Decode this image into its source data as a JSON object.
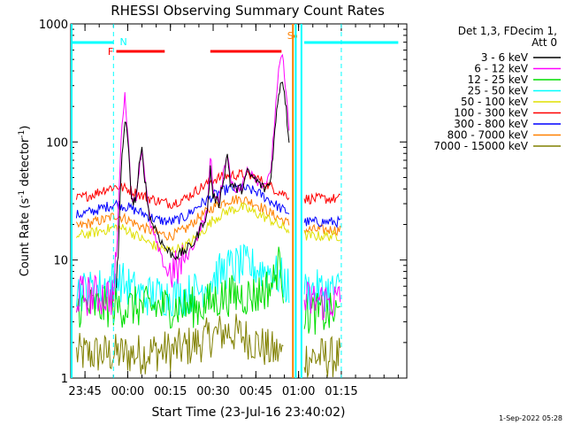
{
  "chart_data": {
    "type": "line",
    "title": "RHESSI Observing Summary Count Rates",
    "xlabel": "Start Time (23-Jul-16 23:40:02)",
    "ylabel": "Count Rate (s^-1 detector^-1)",
    "ylabel_parts": {
      "base": "Count Rate (s",
      "sup": "-1",
      "rest": " detector",
      "sup2": "-1",
      "end": ")"
    },
    "yscale": "log",
    "ylim": [
      1,
      1000
    ],
    "xlim_minutes": [
      -20,
      98
    ],
    "x_tick_labels": [
      {
        "minute": -15,
        "label": "23:45"
      },
      {
        "minute": 0,
        "label": "00:00"
      },
      {
        "minute": 15,
        "label": "00:15"
      },
      {
        "minute": 30,
        "label": "00:30"
      },
      {
        "minute": 45,
        "label": "00:45"
      },
      {
        "minute": 60,
        "label": "01:00"
      },
      {
        "minute": 75,
        "label": "01:15"
      }
    ],
    "y_tick_labels": [
      {
        "value": 1,
        "label": "1"
      },
      {
        "value": 10,
        "label": "10"
      },
      {
        "value": 100,
        "label": "100"
      },
      {
        "value": 1000,
        "label": "1000"
      }
    ],
    "legend_title": [
      "Det 1,3, FDecim 1,",
      "Att 0"
    ],
    "legend_location": "top-right",
    "series": [
      {
        "name": "3 - 6 keV",
        "color": "#000000",
        "points": [
          [
            -18,
            null
          ],
          [
            -5,
            null
          ],
          [
            -4,
            6
          ],
          [
            -3,
            20
          ],
          [
            -2,
            80
          ],
          [
            -1,
            150
          ],
          [
            0,
            110
          ],
          [
            1,
            40
          ],
          [
            2,
            30
          ],
          [
            3,
            35
          ],
          [
            4,
            60
          ],
          [
            5,
            85
          ],
          [
            6,
            50
          ],
          [
            7,
            30
          ],
          [
            8,
            22
          ],
          [
            10,
            18
          ],
          [
            12,
            14
          ],
          [
            14,
            12
          ],
          [
            16,
            11
          ],
          [
            18,
            11
          ],
          [
            20,
            12
          ],
          [
            22,
            13
          ],
          [
            24,
            15
          ],
          [
            26,
            20
          ],
          [
            28,
            25
          ],
          [
            29,
            60
          ],
          [
            30,
            35
          ],
          [
            32,
            30
          ],
          [
            34,
            55
          ],
          [
            35,
            80
          ],
          [
            36,
            45
          ],
          [
            38,
            40
          ],
          [
            40,
            40
          ],
          [
            42,
            55
          ],
          [
            44,
            50
          ],
          [
            46,
            45
          ],
          [
            48,
            40
          ],
          [
            50,
            45
          ],
          [
            51,
            80
          ],
          [
            52,
            150
          ],
          [
            53,
            260
          ],
          [
            54,
            340
          ],
          [
            55,
            280
          ],
          [
            56,
            150
          ],
          [
            57,
            90
          ],
          [
            58,
            null
          ]
        ]
      },
      {
        "name": "6 - 12 keV",
        "color": "#ff00ff",
        "points": [
          [
            -18,
            5
          ],
          [
            -10,
            5
          ],
          [
            -5,
            5
          ],
          [
            -4,
            10
          ],
          [
            -3,
            40
          ],
          [
            -2,
            150
          ],
          [
            -1,
            240
          ],
          [
            0,
            130
          ],
          [
            1,
            45
          ],
          [
            2,
            30
          ],
          [
            3,
            35
          ],
          [
            4,
            60
          ],
          [
            5,
            88
          ],
          [
            6,
            55
          ],
          [
            7,
            30
          ],
          [
            8,
            20
          ],
          [
            10,
            14
          ],
          [
            12,
            10
          ],
          [
            14,
            8
          ],
          [
            16,
            8
          ],
          [
            18,
            8.5
          ],
          [
            20,
            10
          ],
          [
            22,
            12
          ],
          [
            24,
            15
          ],
          [
            26,
            20
          ],
          [
            28,
            25
          ],
          [
            29,
            80
          ],
          [
            30,
            40
          ],
          [
            32,
            30
          ],
          [
            34,
            60
          ],
          [
            35,
            85
          ],
          [
            36,
            50
          ],
          [
            38,
            40
          ],
          [
            40,
            40
          ],
          [
            42,
            60
          ],
          [
            44,
            55
          ],
          [
            46,
            45
          ],
          [
            48,
            45
          ],
          [
            50,
            50
          ],
          [
            51,
            100
          ],
          [
            52,
            200
          ],
          [
            53,
            380
          ],
          [
            54,
            560
          ],
          [
            55,
            400
          ],
          [
            56,
            200
          ],
          [
            57,
            100
          ],
          [
            58,
            null
          ],
          [
            61,
            null
          ],
          [
            62,
            4.5
          ],
          [
            70,
            4.5
          ],
          [
            75,
            4.5
          ]
        ]
      },
      {
        "name": "12 - 25 keV",
        "color": "#00dd00",
        "points": [
          [
            -18,
            4
          ],
          [
            -10,
            4
          ],
          [
            -5,
            4
          ],
          [
            0,
            4
          ],
          [
            5,
            4
          ],
          [
            10,
            4
          ],
          [
            15,
            4
          ],
          [
            20,
            4
          ],
          [
            25,
            4
          ],
          [
            30,
            4.5
          ],
          [
            35,
            5
          ],
          [
            40,
            5
          ],
          [
            45,
            5
          ],
          [
            50,
            6
          ],
          [
            52,
            7
          ],
          [
            53,
            12
          ],
          [
            54,
            8
          ],
          [
            55,
            5
          ],
          [
            58,
            null
          ],
          [
            61,
            null
          ],
          [
            62,
            3.5
          ],
          [
            70,
            3.5
          ],
          [
            75,
            3.5
          ]
        ]
      },
      {
        "name": "25 - 50 keV",
        "color": "#00ffff",
        "points": [
          [
            -18,
            5.5
          ],
          [
            -12,
            5.5
          ],
          [
            -8,
            6
          ],
          [
            -4,
            7
          ],
          [
            -2,
            6.5
          ],
          [
            0,
            6
          ],
          [
            5,
            5
          ],
          [
            10,
            5
          ],
          [
            15,
            5
          ],
          [
            20,
            5
          ],
          [
            25,
            5.5
          ],
          [
            30,
            7
          ],
          [
            35,
            8.5
          ],
          [
            40,
            9
          ],
          [
            45,
            8.5
          ],
          [
            50,
            8
          ],
          [
            54,
            7
          ],
          [
            57,
            5.5
          ],
          [
            58,
            null
          ],
          [
            61,
            null
          ],
          [
            62,
            5.5
          ],
          [
            70,
            5.5
          ],
          [
            75,
            5.5
          ]
        ]
      },
      {
        "name": "50 - 100 keV",
        "color": "#e0e000",
        "points": [
          [
            -18,
            16
          ],
          [
            -12,
            17
          ],
          [
            -8,
            18
          ],
          [
            -4,
            19
          ],
          [
            0,
            18
          ],
          [
            5,
            15
          ],
          [
            10,
            13
          ],
          [
            15,
            12
          ],
          [
            20,
            13
          ],
          [
            25,
            16
          ],
          [
            30,
            22
          ],
          [
            35,
            26
          ],
          [
            40,
            28
          ],
          [
            45,
            25
          ],
          [
            50,
            22
          ],
          [
            54,
            19
          ],
          [
            57,
            18
          ],
          [
            58,
            null
          ],
          [
            61,
            null
          ],
          [
            62,
            16
          ],
          [
            70,
            16
          ],
          [
            75,
            16
          ]
        ]
      },
      {
        "name": "100 - 300 keV",
        "color": "#ff0000",
        "points": [
          [
            -18,
            33
          ],
          [
            -12,
            36
          ],
          [
            -8,
            40
          ],
          [
            -4,
            42
          ],
          [
            0,
            40
          ],
          [
            5,
            35
          ],
          [
            10,
            32
          ],
          [
            15,
            30
          ],
          [
            20,
            33
          ],
          [
            25,
            40
          ],
          [
            30,
            48
          ],
          [
            35,
            52
          ],
          [
            40,
            53
          ],
          [
            45,
            50
          ],
          [
            50,
            42
          ],
          [
            54,
            37
          ],
          [
            57,
            35
          ],
          [
            58,
            null
          ],
          [
            61,
            null
          ],
          [
            62,
            33
          ],
          [
            70,
            33
          ],
          [
            75,
            33
          ]
        ]
      },
      {
        "name": "300 - 800 keV",
        "color": "#0000ff",
        "points": [
          [
            -18,
            24
          ],
          [
            -12,
            26
          ],
          [
            -8,
            28
          ],
          [
            -4,
            30
          ],
          [
            0,
            28
          ],
          [
            5,
            25
          ],
          [
            10,
            22
          ],
          [
            15,
            21
          ],
          [
            20,
            23
          ],
          [
            25,
            29
          ],
          [
            30,
            35
          ],
          [
            35,
            40
          ],
          [
            40,
            41
          ],
          [
            45,
            38
          ],
          [
            50,
            32
          ],
          [
            54,
            27
          ],
          [
            57,
            25
          ],
          [
            58,
            null
          ],
          [
            61,
            null
          ],
          [
            62,
            21
          ],
          [
            70,
            21
          ],
          [
            75,
            21
          ]
        ]
      },
      {
        "name": "800 - 7000 keV",
        "color": "#ff8000",
        "points": [
          [
            -18,
            19
          ],
          [
            -12,
            21
          ],
          [
            -8,
            22
          ],
          [
            -4,
            24
          ],
          [
            0,
            22
          ],
          [
            5,
            19
          ],
          [
            10,
            17
          ],
          [
            15,
            16
          ],
          [
            20,
            18
          ],
          [
            25,
            23
          ],
          [
            30,
            28
          ],
          [
            35,
            32
          ],
          [
            40,
            33
          ],
          [
            45,
            30
          ],
          [
            50,
            25
          ],
          [
            54,
            22
          ],
          [
            57,
            20
          ],
          [
            58,
            null
          ],
          [
            61,
            null
          ],
          [
            62,
            18
          ],
          [
            70,
            18
          ],
          [
            75,
            18
          ]
        ]
      },
      {
        "name": "7000 - 15000 keV",
        "color": "#808000",
        "points": [
          [
            -18,
            1.6
          ],
          [
            -10,
            1.6
          ],
          [
            -5,
            1.6
          ],
          [
            0,
            1.6
          ],
          [
            5,
            1.6
          ],
          [
            10,
            1.7
          ],
          [
            15,
            1.7
          ],
          [
            20,
            1.8
          ],
          [
            25,
            2
          ],
          [
            30,
            2.3
          ],
          [
            35,
            2.5
          ],
          [
            40,
            2.3
          ],
          [
            45,
            2
          ],
          [
            50,
            1.7
          ],
          [
            55,
            1.6
          ],
          [
            58,
            null
          ],
          [
            61,
            null
          ],
          [
            62,
            1.5
          ],
          [
            75,
            1.5
          ]
        ]
      }
    ],
    "annotations": [
      {
        "label": "N",
        "color": "#00ffff",
        "minute": -4
      },
      {
        "label": "F",
        "color": "#ff0000",
        "minute": -7
      },
      {
        "label": "S",
        "color": "#ff8000",
        "minute": 56
      }
    ],
    "state_bars": {
      "night_cyan": [
        [
          -20,
          -5
        ],
        [
          62,
          95
        ]
      ],
      "flare_red": [
        [
          -4,
          13
        ],
        [
          29,
          54
        ]
      ],
      "saa_orange": [
        [
          58,
          59.5
        ]
      ]
    },
    "vertical_markers_minutes": [
      -5,
      58,
      59,
      61,
      75
    ]
  },
  "footer": {
    "date_stamp": "1-Sep-2022 05:28"
  }
}
